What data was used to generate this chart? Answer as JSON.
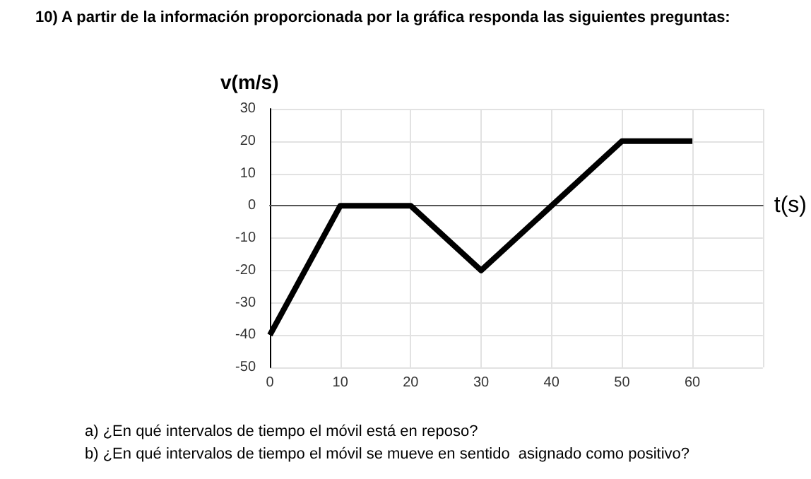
{
  "chart_data": {
    "type": "line",
    "title": "10) A partir de la información proporcionada por la gráfica responda las siguientes preguntas:",
    "xlabel": "t(s)",
    "ylabel": "v(m/s)",
    "x": [
      0,
      10,
      20,
      30,
      40,
      50,
      60
    ],
    "series": [
      {
        "color": "#000000",
        "values": [
          -40,
          0,
          0,
          -20,
          0,
          20,
          20
        ]
      }
    ],
    "xlim": [
      0,
      70
    ],
    "xticks": [
      0,
      10,
      20,
      30,
      40,
      50,
      60,
      {
        "value": 70,
        "label": null
      }
    ],
    "ylim": [
      -50,
      30
    ],
    "yticks": [
      -50,
      -40,
      -30,
      -20,
      -10,
      0,
      10,
      20,
      30
    ],
    "grid": true,
    "marker": "none",
    "line_style": "solid",
    "annotations": [
      "a) ¿En qué intervalos de tiempo el móvil está en reposo?",
      "b) ¿En qué intervalos de tiempo el móvil se mueve en sentido  asignado como positivo?"
    ]
  }
}
